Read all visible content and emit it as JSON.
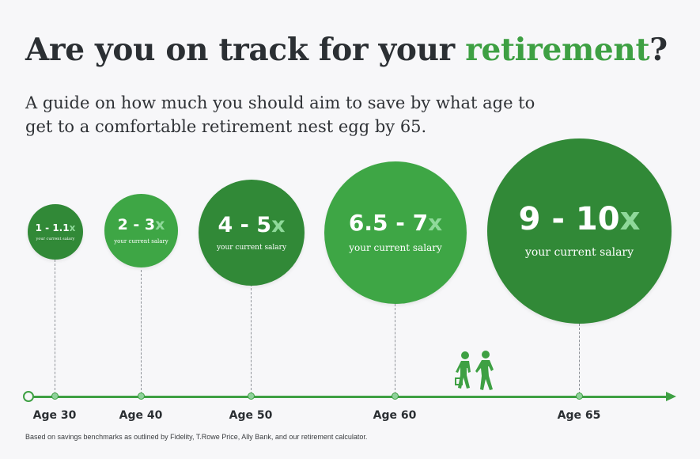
{
  "header": {
    "title_prefix": "Are you on track for your ",
    "title_accent": "retirement",
    "title_suffix": "?",
    "subtitle": "A guide on how much you should aim to save by what age to get to a comfortable retirement nest egg by 65."
  },
  "milestones": [
    {
      "range": "1 - 1.1",
      "suffix": "x",
      "caption": "your current salary",
      "age": "Age 30"
    },
    {
      "range": "2 - 3",
      "suffix": "x",
      "caption": "your current salary",
      "age": "Age 40"
    },
    {
      "range": "4 - 5",
      "suffix": "x",
      "caption": "your current salary",
      "age": "Age 50"
    },
    {
      "range": "6.5 - 7",
      "suffix": "x",
      "caption": "your current salary",
      "age": "Age 60"
    },
    {
      "range": "9 - 10",
      "suffix": "x",
      "caption": "your current salary",
      "age": "Age 65"
    }
  ],
  "footnote": "Based on savings benchmarks as outlined by Fidelity, T.Rowe Price, Ally Bank, and our retirement calculator.",
  "colors": {
    "accent": "#3ea043",
    "circle_dark": "#318937",
    "circle_light": "#3ea645",
    "x_highlight": "#8fd99a"
  },
  "icons": {
    "walkers": "walking-couple-icon"
  }
}
